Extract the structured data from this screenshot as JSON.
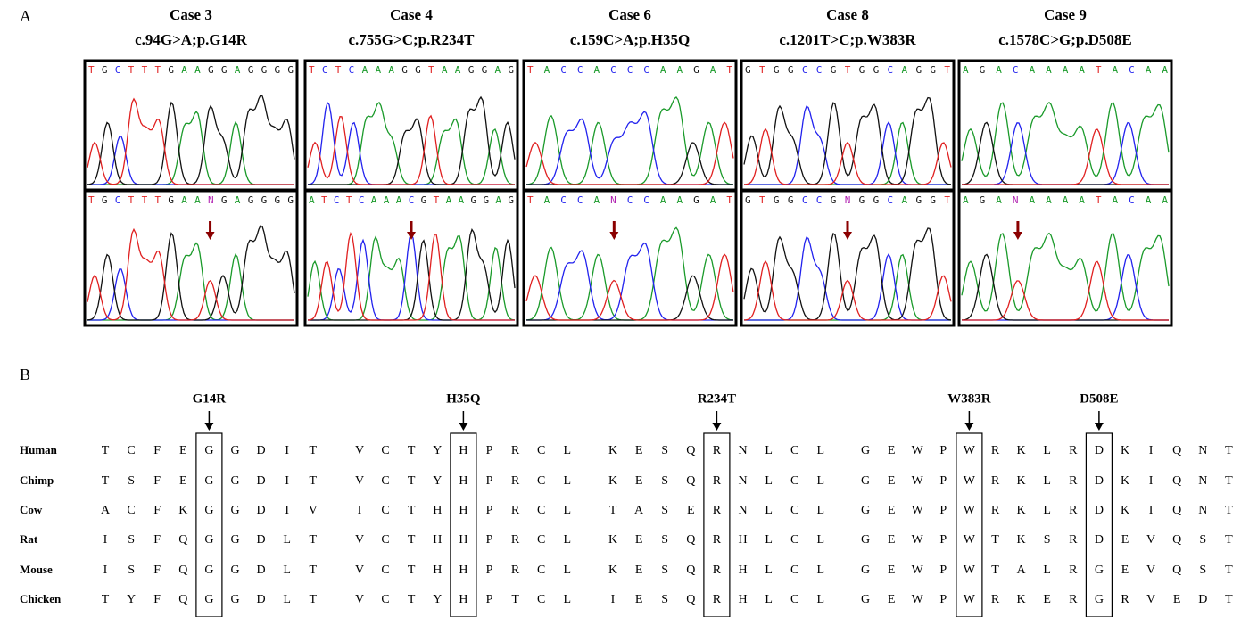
{
  "figure": {
    "panel_labels": [
      "A",
      "B"
    ],
    "cases": [
      {
        "title": "Case 3",
        "mutation": "c.94G>A;p.G14R",
        "reference": "TGCTTTGAAGGAGGGG",
        "patient": "TGCTTTGAANGAGGGG"
      },
      {
        "title": "Case 4",
        "mutation": "c.755G>C;p.R234T",
        "reference": "TCTCAAAGGTAAGGAG",
        "patient": "ATCTCAAACGTAAGGAG"
      },
      {
        "title": "Case 6",
        "mutation": "c.159C>A;p.H35Q",
        "reference": "TACCACCCAAGAT",
        "patient": "TACCANCCAAGAT"
      },
      {
        "title": "Case 8",
        "mutation": "c.1201T>C;p.W383R",
        "reference": "GTGGCCGTGGCAGGT",
        "patient": "GTGGCCGNGGCAGGT"
      },
      {
        "title": "Case 9",
        "mutation": "c.1578C>G;p.D508E",
        "reference": "AGACAAAATACAA",
        "patient": "AGANAAAATACAA"
      }
    ],
    "alignment": {
      "mutations": [
        "G14R",
        "H35Q",
        "R234T",
        "W383R",
        "D508E"
      ],
      "rows": [
        {
          "species": "Human",
          "segments": [
            "TCFEGGDIT",
            "VCTYHPRCL",
            "KESQRNLCL",
            "GEWPWRKLRDKIQNT"
          ]
        },
        {
          "species": "Chimp",
          "segments": [
            "TSFEGGDIT",
            "VCTYHPRCL",
            "KESQRNLCL",
            "GEWPWRKLRDKIQNT"
          ]
        },
        {
          "species": "Cow",
          "segments": [
            "ACFKGGDIV",
            "ICTHHPRCL",
            "TASERNLCL",
            "GEWPWRKLRDKIQNT"
          ]
        },
        {
          "species": "Rat",
          "segments": [
            "ISFQGGDLT",
            "VCTHHPRCL",
            "KESQRHLCL",
            "GEWPWTKSRDEVQST"
          ]
        },
        {
          "species": "Mouse",
          "segments": [
            "ISFQGGDLT",
            "VCTHHPRCL",
            "KESQRHLCL",
            "GEWPWTALRGEVQST"
          ]
        },
        {
          "species": "Chicken",
          "segments": [
            "TYFQGGDLT",
            "VCTYHPTCL",
            "IESQRHLCL",
            "GEWPWRKERGRVEDT"
          ]
        }
      ]
    }
  }
}
